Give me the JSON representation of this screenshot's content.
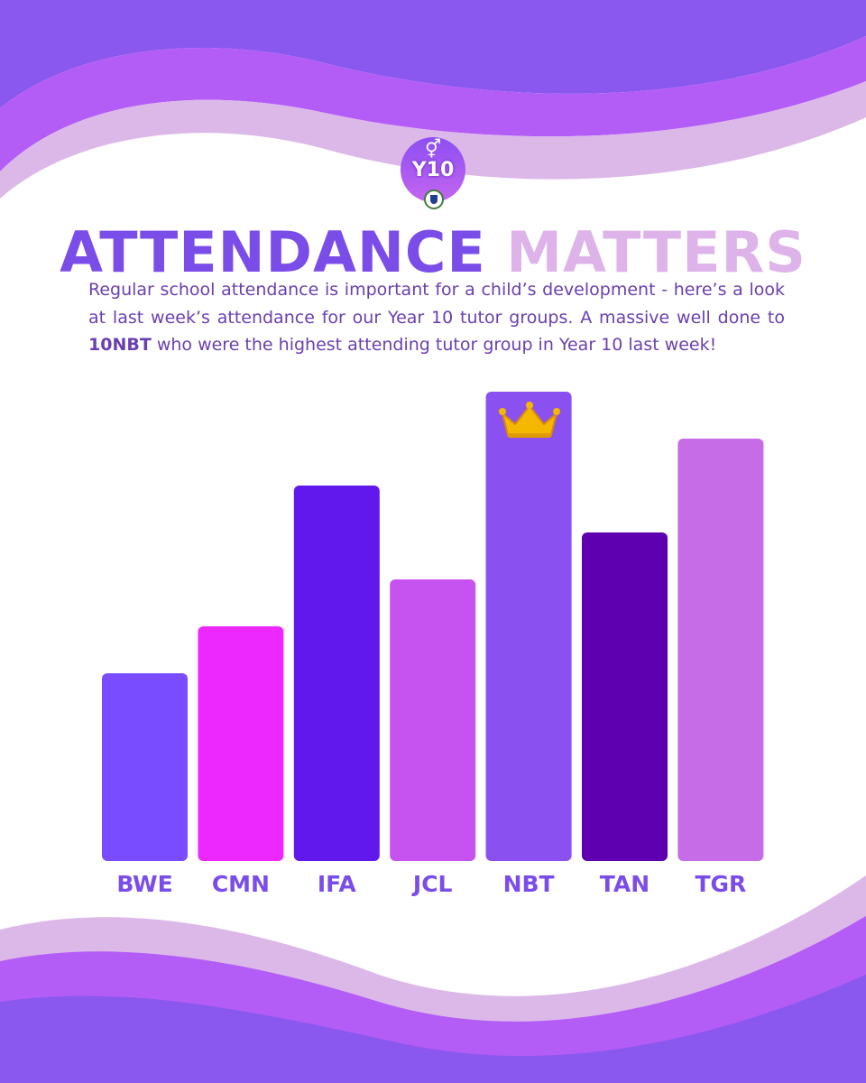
{
  "header": {
    "badge_text": "Y10",
    "badge_symbol": "⚥",
    "title_part1": "ATTENDANCE",
    "title_part2": "MATTERS"
  },
  "intro": {
    "text_before": "Regular school attendance is important for a child’s development - here’s a look at last week’s attendance for our Year 10 tutor groups. A massive well done to ",
    "highlight": "10NBT",
    "text_after": " who were the highest attending tutor group in Year 10 last week!"
  },
  "colors": {
    "wave_dark": "#8a58ee",
    "wave_mid": "#b45cf6",
    "wave_light": "#dcb8e8",
    "title_primary": "#7b4de8",
    "title_secondary": "#ddb3ea",
    "text": "#6a3fb0",
    "crown": "#f5b800"
  },
  "chart_data": {
    "type": "bar",
    "title": "",
    "xlabel": "",
    "ylabel": "",
    "grid": false,
    "categories": [
      "BWE",
      "CMN",
      "IFA",
      "JCL",
      "NBT",
      "TAN",
      "TGR"
    ],
    "values": [
      40,
      50,
      80,
      60,
      100,
      70,
      90
    ],
    "bar_colors": [
      "#7a4cff",
      "#ec28ff",
      "#6118ec",
      "#c653ef",
      "#8b51f0",
      "#5e00b0",
      "#c56ce6"
    ],
    "ylim": [
      0,
      100
    ],
    "highlight_category": "NBT",
    "highlight_icon": "crown-icon"
  }
}
